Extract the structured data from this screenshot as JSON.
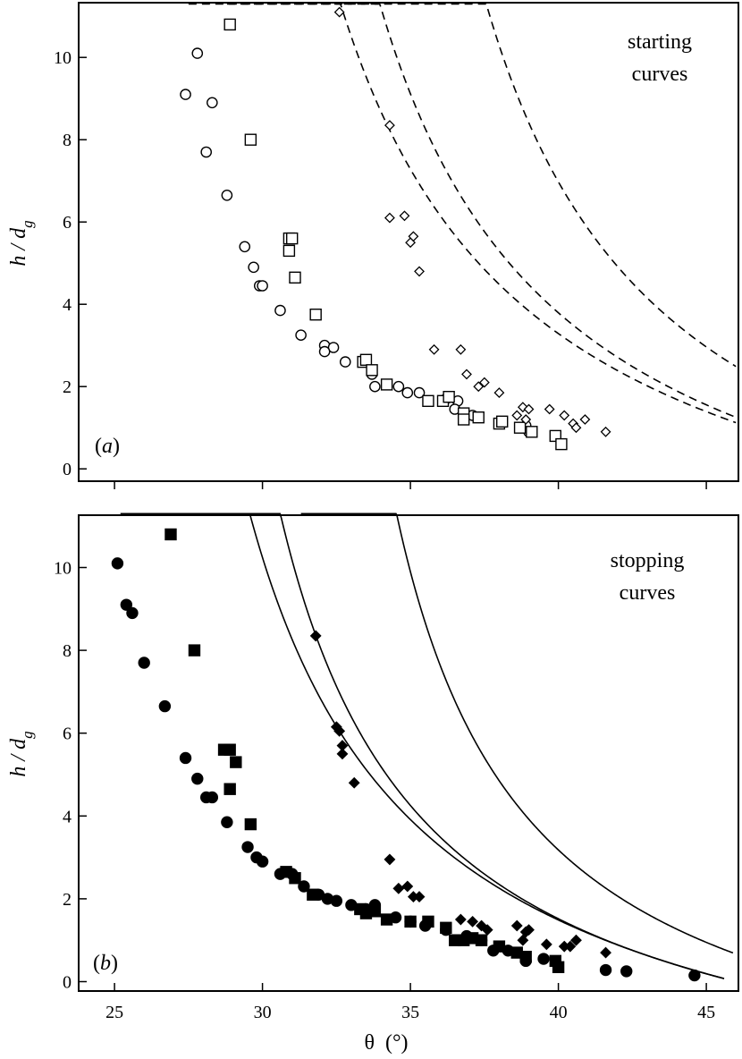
{
  "chart_data": [
    {
      "type": "scatter",
      "panel": "a",
      "panel_label": "a",
      "annotation_lines": [
        "starting",
        "curves"
      ],
      "ylabel": "h / d_g",
      "ylabel_main": "h / d",
      "ylabel_sub": "g",
      "xlim": [
        24,
        46.5
      ],
      "ylim": [
        -0.3,
        11.3
      ],
      "y_ticks": [
        0,
        2,
        4,
        6,
        8,
        10
      ],
      "x_ticks": [
        25,
        30,
        35,
        40,
        45
      ],
      "x_tick_labels_shown": false,
      "series": [
        {
          "name": "circles",
          "marker": "open-circle",
          "points": [
            [
              27.4,
              9.1
            ],
            [
              27.8,
              10.1
            ],
            [
              28.3,
              8.9
            ],
            [
              28.1,
              7.7
            ],
            [
              28.8,
              6.65
            ],
            [
              29.4,
              5.4
            ],
            [
              29.7,
              4.9
            ],
            [
              29.9,
              4.45
            ],
            [
              30.0,
              4.45
            ],
            [
              30.6,
              3.85
            ],
            [
              31.3,
              3.25
            ],
            [
              32.1,
              3.0
            ],
            [
              32.4,
              2.95
            ],
            [
              32.1,
              2.85
            ],
            [
              32.8,
              2.6
            ],
            [
              33.7,
              2.3
            ],
            [
              33.8,
              2.0
            ],
            [
              34.6,
              2.0
            ],
            [
              34.9,
              1.85
            ],
            [
              35.3,
              1.85
            ],
            [
              36.2,
              1.7
            ],
            [
              36.6,
              1.65
            ],
            [
              36.5,
              1.45
            ],
            [
              37.1,
              1.3
            ],
            [
              38.9,
              1.05
            ],
            [
              39.0,
              0.9
            ]
          ]
        },
        {
          "name": "squares",
          "marker": "open-square",
          "points": [
            [
              28.9,
              10.8
            ],
            [
              29.6,
              8.0
            ],
            [
              30.9,
              5.6
            ],
            [
              31.0,
              5.6
            ],
            [
              30.9,
              5.3
            ],
            [
              31.1,
              4.65
            ],
            [
              31.8,
              3.75
            ],
            [
              33.4,
              2.6
            ],
            [
              33.5,
              2.65
            ],
            [
              33.7,
              2.4
            ],
            [
              34.2,
              2.05
            ],
            [
              35.6,
              1.65
            ],
            [
              36.1,
              1.65
            ],
            [
              36.3,
              1.75
            ],
            [
              36.8,
              1.35
            ],
            [
              36.8,
              1.2
            ],
            [
              37.3,
              1.25
            ],
            [
              38.0,
              1.1
            ],
            [
              38.1,
              1.15
            ],
            [
              38.7,
              1.0
            ],
            [
              39.1,
              0.9
            ],
            [
              39.9,
              0.8
            ],
            [
              40.1,
              0.6
            ]
          ]
        },
        {
          "name": "diamonds",
          "marker": "open-diamond",
          "points": [
            [
              32.6,
              11.1
            ],
            [
              34.3,
              8.35
            ],
            [
              34.3,
              6.1
            ],
            [
              34.8,
              6.15
            ],
            [
              35.0,
              5.5
            ],
            [
              35.1,
              5.65
            ],
            [
              35.3,
              4.8
            ],
            [
              35.8,
              2.9
            ],
            [
              36.7,
              2.9
            ],
            [
              36.9,
              2.3
            ],
            [
              37.3,
              2.0
            ],
            [
              37.5,
              2.1
            ],
            [
              38.0,
              1.85
            ],
            [
              38.6,
              1.3
            ],
            [
              38.8,
              1.5
            ],
            [
              39.0,
              1.45
            ],
            [
              38.9,
              1.2
            ],
            [
              39.7,
              1.45
            ],
            [
              40.2,
              1.3
            ],
            [
              40.5,
              1.1
            ],
            [
              40.6,
              1.0
            ],
            [
              40.9,
              1.2
            ],
            [
              41.6,
              0.9
            ]
          ]
        }
      ],
      "curves": [
        {
          "name": "circles-fit",
          "style": "dashed",
          "x_start": 27.5,
          "x_end": 46.0,
          "theta1": 26.2,
          "theta2": 51.6,
          "L": 2.7
        },
        {
          "name": "squares-fit",
          "style": "dashed",
          "x_start": 28.8,
          "x_end": 46.0,
          "theta1": 27.9,
          "theta2": 51.7,
          "L": 2.75
        },
        {
          "name": "diamonds-fit",
          "style": "dashed",
          "x_start": 32.75,
          "x_end": 46.0,
          "theta1": 31.5,
          "theta2": 55.0,
          "L": 2.68
        }
      ]
    },
    {
      "type": "scatter",
      "panel": "b",
      "panel_label": "b",
      "annotation_lines": [
        "stopping",
        "curves"
      ],
      "ylabel": "h / d_g",
      "ylabel_main": "h / d",
      "ylabel_sub": "g",
      "xlabel": "θ (°)",
      "xlabel_symbol": "θ",
      "xlabel_unit": "(°)",
      "xlim": [
        24,
        46.5
      ],
      "ylim": [
        -0.3,
        11.3
      ],
      "y_ticks": [
        0,
        2,
        4,
        6,
        8,
        10
      ],
      "x_ticks": [
        25,
        30,
        35,
        40,
        45
      ],
      "x_tick_labels_shown": true,
      "series": [
        {
          "name": "circles",
          "marker": "filled-circle",
          "points": [
            [
              25.1,
              10.1
            ],
            [
              25.4,
              9.1
            ],
            [
              25.6,
              8.9
            ],
            [
              26.0,
              7.7
            ],
            [
              26.7,
              6.65
            ],
            [
              27.4,
              5.4
            ],
            [
              27.8,
              4.9
            ],
            [
              28.1,
              4.45
            ],
            [
              28.3,
              4.45
            ],
            [
              28.8,
              3.85
            ],
            [
              29.5,
              3.25
            ],
            [
              29.8,
              3.0
            ],
            [
              30.0,
              2.9
            ],
            [
              30.6,
              2.6
            ],
            [
              31.0,
              2.6
            ],
            [
              31.4,
              2.3
            ],
            [
              31.9,
              2.1
            ],
            [
              32.2,
              2.0
            ],
            [
              32.5,
              1.95
            ],
            [
              33.0,
              1.85
            ],
            [
              33.5,
              1.75
            ],
            [
              33.8,
              1.85
            ],
            [
              34.5,
              1.55
            ],
            [
              35.0,
              1.45
            ],
            [
              35.5,
              1.35
            ],
            [
              36.2,
              1.25
            ],
            [
              36.9,
              1.1
            ],
            [
              37.4,
              1.0
            ],
            [
              37.8,
              0.75
            ],
            [
              38.3,
              0.75
            ],
            [
              38.9,
              0.5
            ],
            [
              39.5,
              0.55
            ],
            [
              41.6,
              0.28
            ],
            [
              42.3,
              0.25
            ],
            [
              44.6,
              0.15
            ]
          ]
        },
        {
          "name": "squares",
          "marker": "filled-square",
          "points": [
            [
              26.9,
              10.8
            ],
            [
              27.7,
              8.0
            ],
            [
              28.7,
              5.6
            ],
            [
              28.9,
              5.6
            ],
            [
              29.1,
              5.3
            ],
            [
              28.9,
              4.65
            ],
            [
              29.6,
              3.8
            ],
            [
              30.8,
              2.65
            ],
            [
              31.1,
              2.5
            ],
            [
              31.7,
              2.1
            ],
            [
              33.3,
              1.75
            ],
            [
              33.5,
              1.65
            ],
            [
              33.8,
              1.7
            ],
            [
              34.2,
              1.5
            ],
            [
              35.0,
              1.45
            ],
            [
              35.6,
              1.45
            ],
            [
              36.2,
              1.3
            ],
            [
              36.5,
              1.0
            ],
            [
              36.8,
              1.0
            ],
            [
              37.1,
              1.05
            ],
            [
              37.4,
              1.0
            ],
            [
              38.0,
              0.85
            ],
            [
              38.6,
              0.7
            ],
            [
              38.9,
              0.6
            ],
            [
              39.9,
              0.5
            ],
            [
              40.0,
              0.35
            ]
          ]
        },
        {
          "name": "diamonds",
          "marker": "filled-diamond",
          "points": [
            [
              31.8,
              8.35
            ],
            [
              32.5,
              6.15
            ],
            [
              32.6,
              6.05
            ],
            [
              32.7,
              5.7
            ],
            [
              32.7,
              5.5
            ],
            [
              33.1,
              4.8
            ],
            [
              34.3,
              2.95
            ],
            [
              34.6,
              2.25
            ],
            [
              34.9,
              2.3
            ],
            [
              35.1,
              2.05
            ],
            [
              35.3,
              2.05
            ],
            [
              36.7,
              1.5
            ],
            [
              37.1,
              1.45
            ],
            [
              37.4,
              1.35
            ],
            [
              37.6,
              1.25
            ],
            [
              38.6,
              1.35
            ],
            [
              38.9,
              1.2
            ],
            [
              39.0,
              1.25
            ],
            [
              38.8,
              1.0
            ],
            [
              39.6,
              0.9
            ],
            [
              40.2,
              0.85
            ],
            [
              40.4,
              0.85
            ],
            [
              40.6,
              1.0
            ],
            [
              41.6,
              0.7
            ]
          ]
        }
      ],
      "curves": [
        {
          "name": "circles-fit",
          "style": "solid",
          "x_start": 25.2,
          "x_end": 45.6,
          "theta1": 23.9,
          "theta2": 46.0,
          "L": 3.0
        },
        {
          "name": "squares-fit",
          "style": "solid",
          "x_start": 26.9,
          "x_end": 45.6,
          "theta1": 25.8,
          "theta2": 46.0,
          "L": 2.75
        },
        {
          "name": "diamonds-fit",
          "style": "solid",
          "x_start": 31.3,
          "x_end": 45.9,
          "theta1": 30.1,
          "theta2": 49.0,
          "L": 2.65
        }
      ]
    }
  ]
}
